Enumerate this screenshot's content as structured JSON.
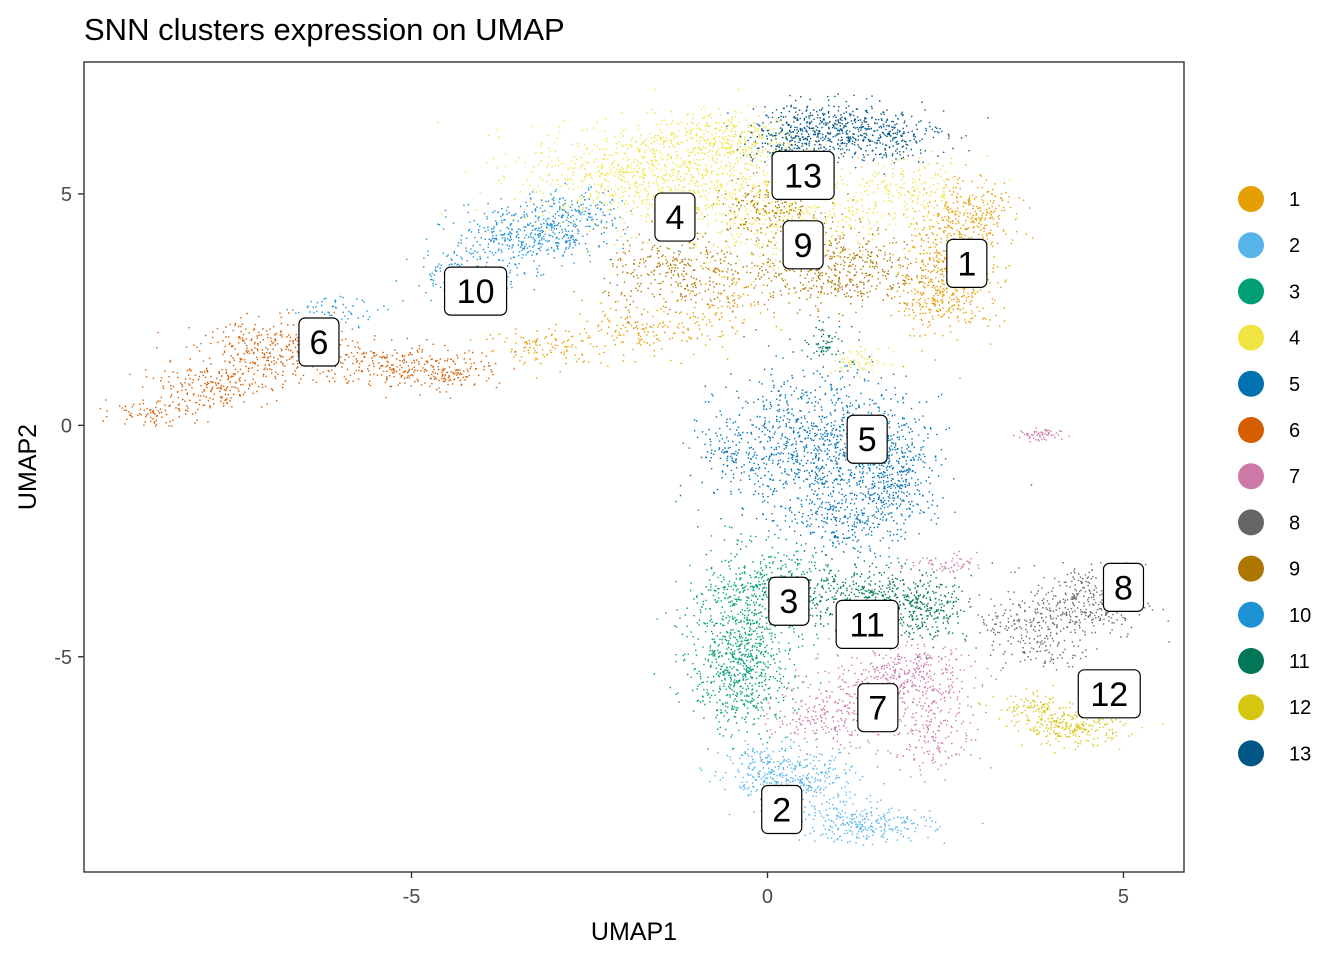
{
  "chart_data": {
    "type": "scatter",
    "title": "SNN clusters expression on UMAP",
    "xlabel": "UMAP1",
    "ylabel": "UMAP2",
    "xlim": [
      -9.6,
      5.85
    ],
    "ylim": [
      -9.65,
      7.85
    ],
    "x_ticks": [
      {
        "value": -5,
        "label": "-5"
      },
      {
        "value": 0,
        "label": "0"
      },
      {
        "value": 5,
        "label": "5"
      }
    ],
    "y_ticks": [
      {
        "value": -5,
        "label": "-5"
      },
      {
        "value": 0,
        "label": "0"
      },
      {
        "value": 5,
        "label": "5"
      }
    ],
    "grid": false,
    "legend_position": "right",
    "legend": [
      {
        "label": "1",
        "color": "#E69F00"
      },
      {
        "label": "2",
        "color": "#56B4E9"
      },
      {
        "label": "3",
        "color": "#009E73"
      },
      {
        "label": "4",
        "color": "#F0E442"
      },
      {
        "label": "5",
        "color": "#0072B2"
      },
      {
        "label": "6",
        "color": "#D55E00"
      },
      {
        "label": "7",
        "color": "#CC79A7"
      },
      {
        "label": "8",
        "color": "#666666"
      },
      {
        "label": "9",
        "color": "#AD7700"
      },
      {
        "label": "10",
        "color": "#1C91D4"
      },
      {
        "label": "11",
        "color": "#007756"
      },
      {
        "label": "12",
        "color": "#D5C711"
      },
      {
        "label": "13",
        "color": "#005685"
      }
    ],
    "clusters": [
      {
        "name": "1",
        "color": "#E69F00",
        "label": {
          "text": "1",
          "x": 2.8,
          "y": 3.5
        },
        "blobs": [
          {
            "x": 2.6,
            "y": 3.6,
            "sx": 0.35,
            "sy": 0.75,
            "n": 520
          },
          {
            "x": 2.9,
            "y": 4.6,
            "sx": 0.3,
            "sy": 0.35,
            "n": 160
          },
          {
            "x": 2.4,
            "y": 2.7,
            "sx": 0.3,
            "sy": 0.25,
            "n": 120
          },
          {
            "x": -1.8,
            "y": 2.0,
            "sx": 0.55,
            "sy": 0.25,
            "n": 160
          },
          {
            "x": -3.1,
            "y": 1.7,
            "sx": 0.45,
            "sy": 0.2,
            "n": 110
          },
          {
            "x": -0.6,
            "y": 2.8,
            "sx": 0.4,
            "sy": 0.4,
            "n": 120
          }
        ]
      },
      {
        "name": "2",
        "color": "#56B4E9",
        "label": {
          "text": "2",
          "x": 0.2,
          "y": -8.3
        },
        "blobs": [
          {
            "x": 0.4,
            "y": -7.7,
            "sx": 0.45,
            "sy": 0.35,
            "n": 380
          },
          {
            "x": 1.4,
            "y": -8.6,
            "sx": 0.45,
            "sy": 0.2,
            "n": 260
          },
          {
            "x": -0.1,
            "y": -7.3,
            "sx": 0.2,
            "sy": 0.2,
            "n": 80
          }
        ]
      },
      {
        "name": "3",
        "color": "#009E73",
        "label": {
          "text": "3",
          "x": 0.3,
          "y": -3.8
        },
        "blobs": [
          {
            "x": -0.35,
            "y": -4.5,
            "sx": 0.4,
            "sy": 0.9,
            "n": 720
          },
          {
            "x": -0.45,
            "y": -5.6,
            "sx": 0.3,
            "sy": 0.5,
            "n": 240
          },
          {
            "x": 0.1,
            "y": -3.3,
            "sx": 0.4,
            "sy": 0.35,
            "n": 200
          }
        ]
      },
      {
        "name": "4",
        "color": "#F0E442",
        "label": {
          "text": "4",
          "x": -1.3,
          "y": 4.5
        },
        "blobs": [
          {
            "x": -1.6,
            "y": 5.4,
            "sx": 0.9,
            "sy": 0.55,
            "n": 950
          },
          {
            "x": -0.6,
            "y": 6.2,
            "sx": 0.5,
            "sy": 0.3,
            "n": 330
          },
          {
            "x": 0.3,
            "y": 4.4,
            "sx": 0.7,
            "sy": 0.5,
            "n": 450
          },
          {
            "x": 1.9,
            "y": 5.1,
            "sx": 0.5,
            "sy": 0.35,
            "n": 220
          },
          {
            "x": 1.3,
            "y": 1.4,
            "sx": 0.2,
            "sy": 0.15,
            "n": 60
          }
        ]
      },
      {
        "name": "5",
        "color": "#0072B2",
        "label": {
          "text": "5",
          "x": 1.4,
          "y": -0.3
        },
        "blobs": [
          {
            "x": 0.7,
            "y": -0.5,
            "sx": 0.7,
            "sy": 0.85,
            "n": 1100
          },
          {
            "x": 1.8,
            "y": -1.0,
            "sx": 0.3,
            "sy": 0.55,
            "n": 300
          },
          {
            "x": 1.2,
            "y": -2.0,
            "sx": 0.4,
            "sy": 0.4,
            "n": 220
          },
          {
            "x": -0.6,
            "y": -0.6,
            "sx": 0.2,
            "sy": 0.3,
            "n": 70
          }
        ]
      },
      {
        "name": "6",
        "color": "#D55E00",
        "label": {
          "text": "6",
          "x": -6.3,
          "y": 1.8
        },
        "blobs": [
          {
            "x": -6.9,
            "y": 1.6,
            "sx": 0.55,
            "sy": 0.35,
            "n": 360
          },
          {
            "x": -7.9,
            "y": 0.8,
            "sx": 0.45,
            "sy": 0.25,
            "n": 200
          },
          {
            "x": -8.7,
            "y": 0.3,
            "sx": 0.25,
            "sy": 0.15,
            "n": 70
          },
          {
            "x": -5.2,
            "y": 1.3,
            "sx": 0.5,
            "sy": 0.25,
            "n": 240
          },
          {
            "x": -4.4,
            "y": 1.1,
            "sx": 0.3,
            "sy": 0.15,
            "n": 90
          }
        ]
      },
      {
        "name": "7",
        "color": "#CC79A7",
        "label": {
          "text": "7",
          "x": 1.55,
          "y": -6.1
        },
        "blobs": [
          {
            "x": 1.9,
            "y": -5.4,
            "sx": 0.5,
            "sy": 0.35,
            "n": 380
          },
          {
            "x": 0.9,
            "y": -6.2,
            "sx": 0.4,
            "sy": 0.35,
            "n": 260
          },
          {
            "x": 2.3,
            "y": -6.6,
            "sx": 0.35,
            "sy": 0.45,
            "n": 200
          },
          {
            "x": 2.5,
            "y": -3.0,
            "sx": 0.3,
            "sy": 0.12,
            "n": 60
          },
          {
            "x": 3.8,
            "y": -0.2,
            "sx": 0.15,
            "sy": 0.08,
            "n": 60
          }
        ]
      },
      {
        "name": "8",
        "color": "#666666",
        "label": {
          "text": "8",
          "x": 5.0,
          "y": -3.5
        },
        "blobs": [
          {
            "x": 4.5,
            "y": -3.8,
            "sx": 0.4,
            "sy": 0.4,
            "n": 330
          },
          {
            "x": 3.6,
            "y": -4.2,
            "sx": 0.45,
            "sy": 0.25,
            "n": 160
          },
          {
            "x": 3.9,
            "y": -4.9,
            "sx": 0.3,
            "sy": 0.2,
            "n": 70
          }
        ]
      },
      {
        "name": "9",
        "color": "#AD7700",
        "label": {
          "text": "9",
          "x": 0.5,
          "y": 3.9
        },
        "blobs": [
          {
            "x": 0.9,
            "y": 3.4,
            "sx": 0.6,
            "sy": 0.45,
            "n": 500
          },
          {
            "x": -1.3,
            "y": 3.3,
            "sx": 0.5,
            "sy": 0.45,
            "n": 300
          },
          {
            "x": 0.0,
            "y": 4.7,
            "sx": 0.4,
            "sy": 0.3,
            "n": 180
          }
        ]
      },
      {
        "name": "10",
        "color": "#1C91D4",
        "label": {
          "text": "10",
          "x": -4.1,
          "y": 2.9
        },
        "blobs": [
          {
            "x": -3.4,
            "y": 4.1,
            "sx": 0.5,
            "sy": 0.35,
            "n": 400
          },
          {
            "x": -2.7,
            "y": 4.5,
            "sx": 0.3,
            "sy": 0.3,
            "n": 160
          },
          {
            "x": -4.2,
            "y": 3.3,
            "sx": 0.4,
            "sy": 0.25,
            "n": 140
          },
          {
            "x": -6.0,
            "y": 2.5,
            "sx": 0.35,
            "sy": 0.15,
            "n": 60
          }
        ]
      },
      {
        "name": "11",
        "color": "#007756",
        "label": {
          "text": "11",
          "x": 1.4,
          "y": -4.3
        },
        "blobs": [
          {
            "x": 1.4,
            "y": -3.7,
            "sx": 0.6,
            "sy": 0.35,
            "n": 440
          },
          {
            "x": 2.2,
            "y": -4.0,
            "sx": 0.3,
            "sy": 0.3,
            "n": 180
          },
          {
            "x": 0.8,
            "y": 1.8,
            "sx": 0.15,
            "sy": 0.2,
            "n": 60
          }
        ]
      },
      {
        "name": "12",
        "color": "#D5C711",
        "label": {
          "text": "12",
          "x": 4.8,
          "y": -5.8
        },
        "blobs": [
          {
            "x": 4.3,
            "y": -6.5,
            "sx": 0.35,
            "sy": 0.2,
            "n": 260
          },
          {
            "x": 3.7,
            "y": -6.1,
            "sx": 0.25,
            "sy": 0.15,
            "n": 90
          }
        ]
      },
      {
        "name": "13",
        "color": "#005685",
        "label": {
          "text": "13",
          "x": 0.5,
          "y": 5.4
        },
        "blobs": [
          {
            "x": 0.8,
            "y": 6.4,
            "sx": 0.45,
            "sy": 0.3,
            "n": 380
          },
          {
            "x": 1.6,
            "y": 6.3,
            "sx": 0.45,
            "sy": 0.3,
            "n": 260
          },
          {
            "x": 0.2,
            "y": 6.1,
            "sx": 0.3,
            "sy": 0.25,
            "n": 120
          }
        ]
      }
    ]
  }
}
